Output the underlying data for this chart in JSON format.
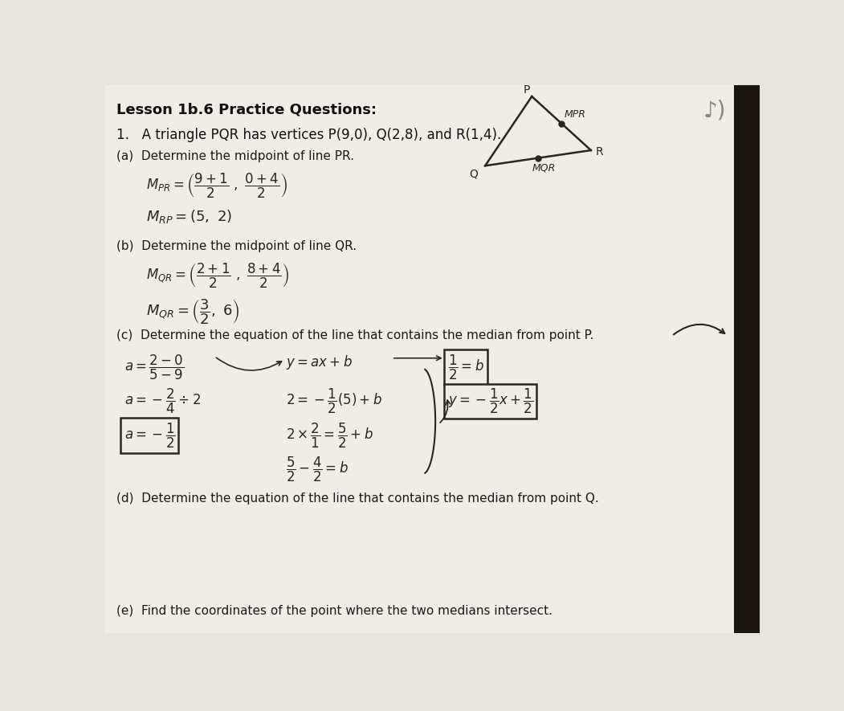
{
  "bg_color": "#e8e4de",
  "paper_color": "#f0ece6",
  "title": "Lesson 1b.6 Practice Questions:",
  "q1_text": "1.   A triangle PQR has vertices P(9,0), Q(2,8), and R(1,4).",
  "qa_label": "(a)  Determine the midpoint of line PR.",
  "qb_label": "(b)  Determine the midpoint of line QR.",
  "qc_label": "(c)  Determine the equation of the line that contains the median from point P.",
  "qd_label": "(d)  Determine the equation of the line that contains the median from point Q.",
  "qe_label": "(e)  Find the coordinates of the point where the two medians intersect.",
  "title_fontsize": 13,
  "body_fontsize": 11,
  "math_fontsize": 11,
  "hand_color": "#2a2520",
  "print_color": "#1a1a1a"
}
